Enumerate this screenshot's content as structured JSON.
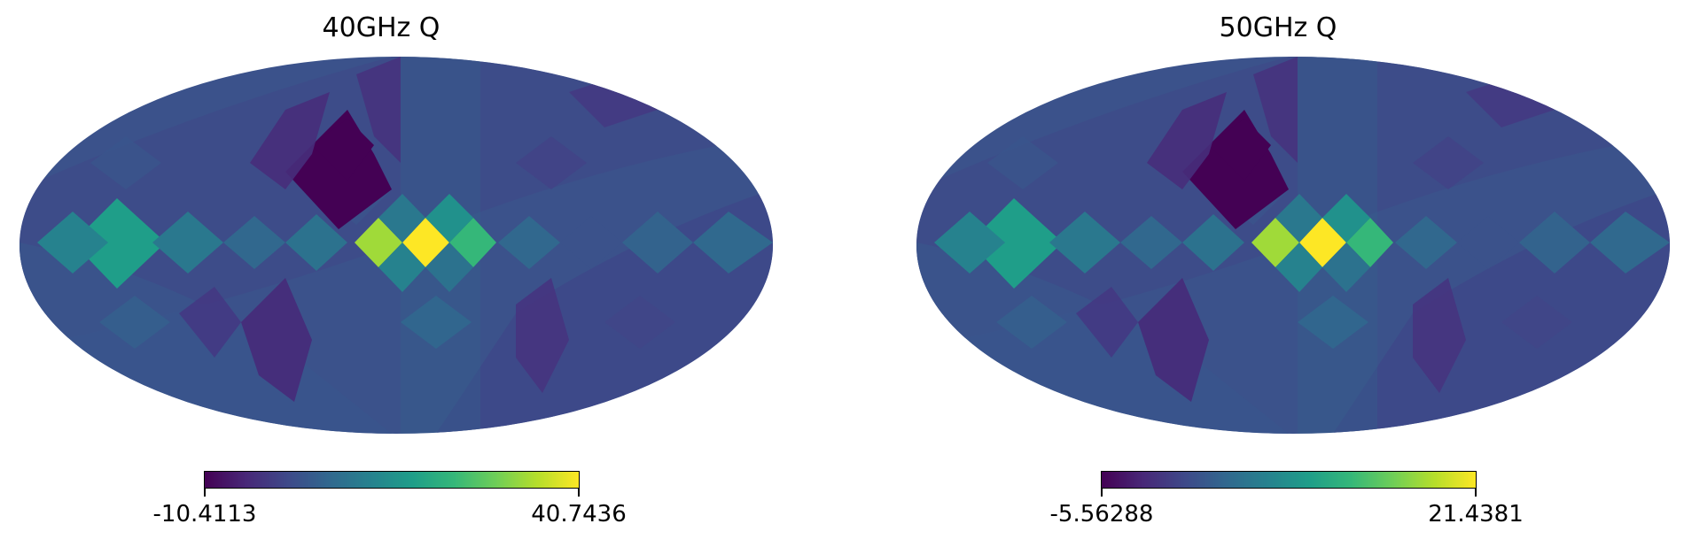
{
  "panels": [
    {
      "title": "40GHz Q",
      "colorbar": {
        "min_label": "-10.4113",
        "max_label": "40.7436",
        "colormap": "viridis"
      }
    },
    {
      "title": "50GHz Q",
      "colorbar": {
        "min_label": "-5.56288",
        "max_label": "21.4381",
        "colormap": "viridis"
      }
    }
  ],
  "colors": {
    "background_field": "#3b528b",
    "dark_spot": "#440154",
    "bright_spot": "#fde725",
    "yellow_green": "#a0da39",
    "green": "#35b779",
    "teal": "#21918c"
  }
}
